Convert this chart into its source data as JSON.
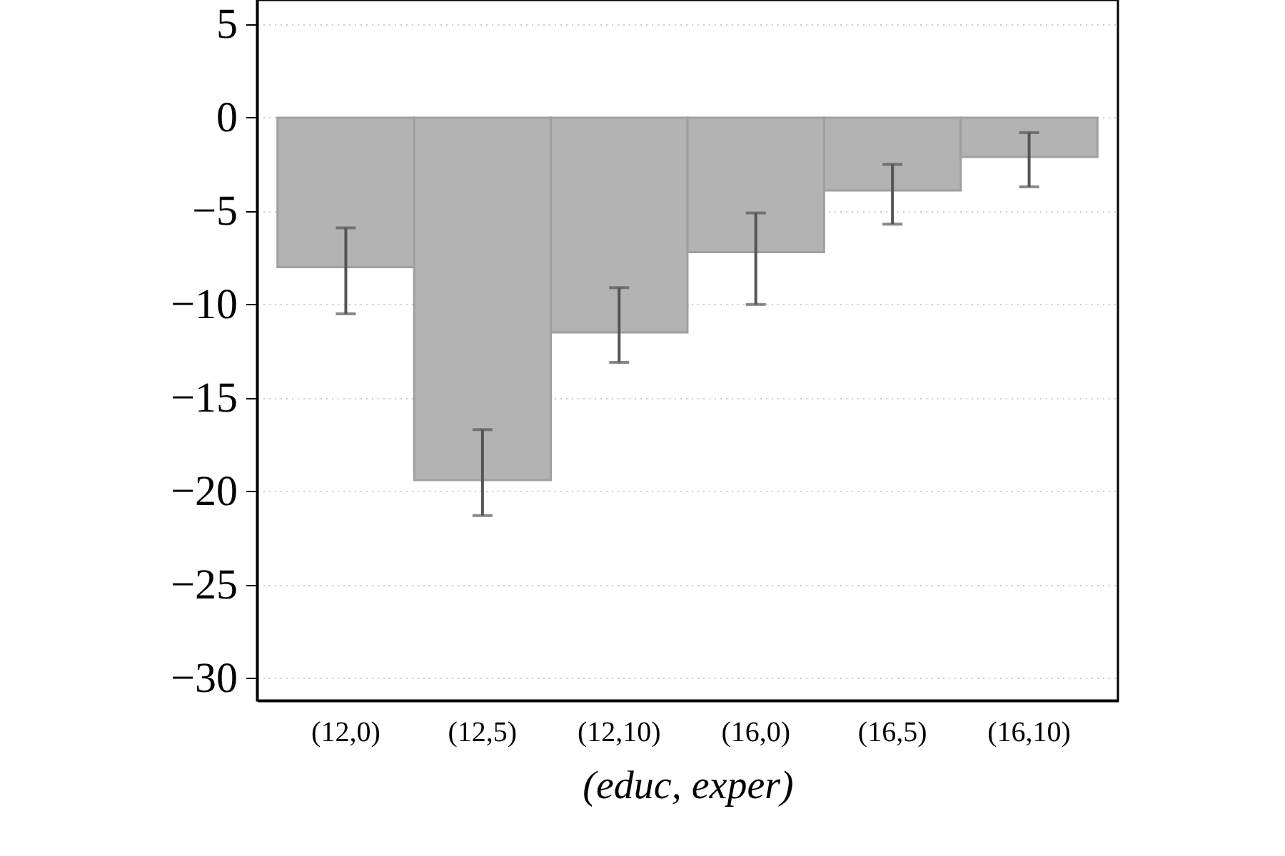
{
  "chart_data": {
    "type": "bar",
    "xlabel": "(educ, exper)",
    "categories": [
      "(12,0)",
      "(12,5)",
      "(12,10)",
      "(16,0)",
      "(16,5)",
      "(16,10)"
    ],
    "series": [
      {
        "color": "#b3b3b3",
        "values": [
          -8.0,
          -19.4,
          -11.5,
          -7.2,
          -3.9,
          -2.1
        ],
        "errors": [
          [
            -10.5,
            -5.9
          ],
          [
            -21.3,
            -16.7
          ],
          [
            -13.1,
            -9.1
          ],
          [
            -10.0,
            -5.1
          ],
          [
            -5.7,
            -2.5
          ],
          [
            -3.7,
            -0.8
          ]
        ]
      }
    ],
    "ylim": [
      -31.2,
      6.3
    ],
    "yticks": [
      -30,
      -25,
      -20,
      -15,
      -10,
      -5,
      0,
      5
    ],
    "grid": "y"
  }
}
